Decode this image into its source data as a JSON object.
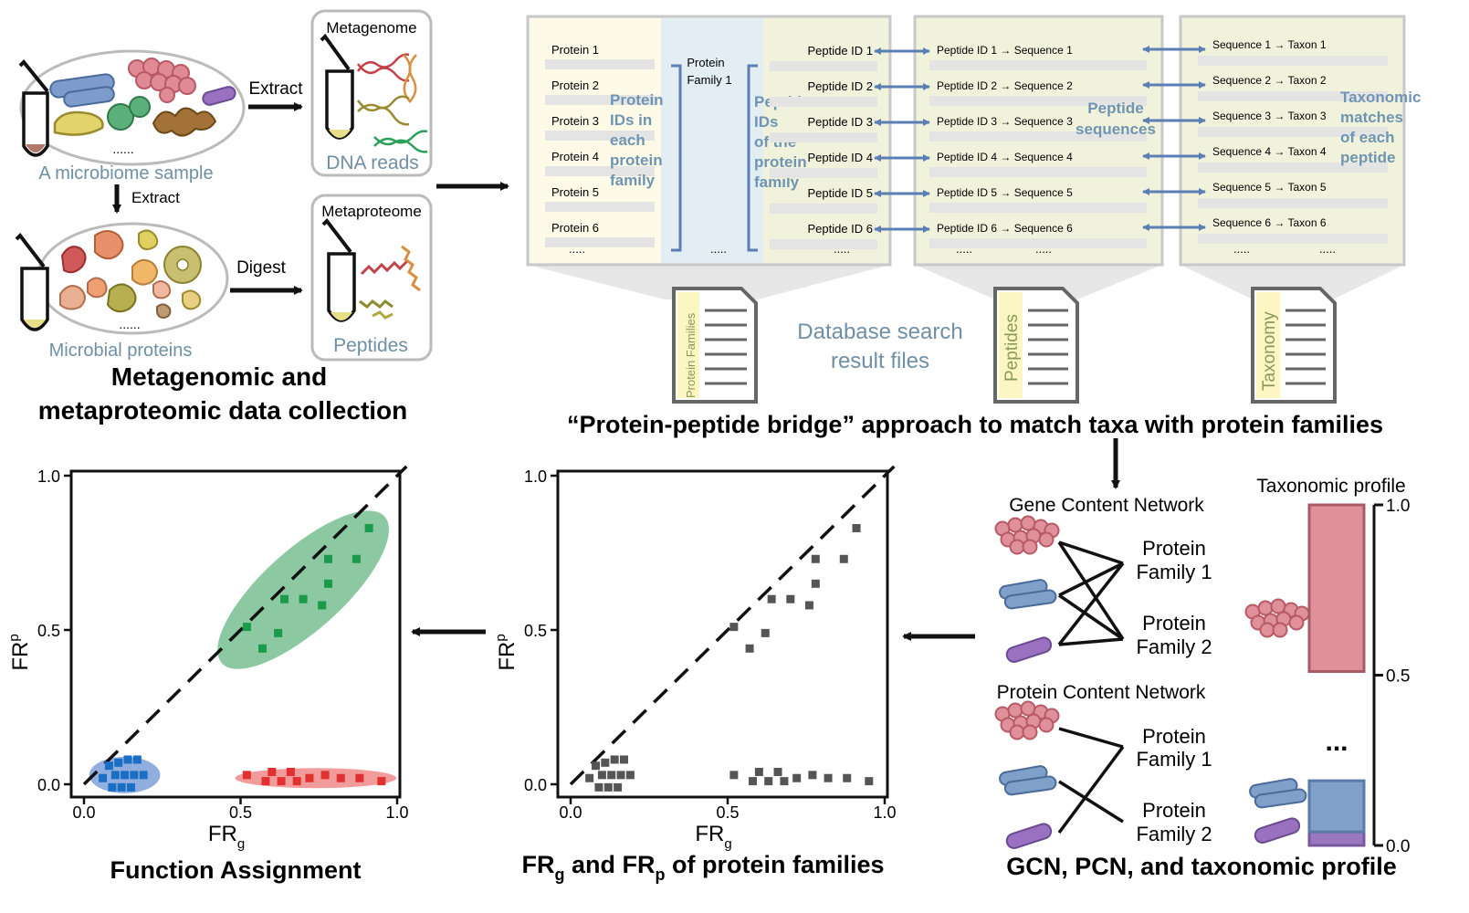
{
  "panels": {
    "collection": {
      "sample_label": "A microbiome sample",
      "ellipsis": "......",
      "extract_right": "Extract",
      "extract_down": "Extract",
      "digest": "Digest",
      "metagenome_title": "Metagenome",
      "dna_reads": "DNA reads",
      "metaproteome_title": "Metaproteome",
      "peptides": "Peptides",
      "microbial_proteins": "Microbial proteins",
      "caption_line1": "Metagenomic and",
      "caption_line2": "metaproteomic data collection"
    },
    "bridge": {
      "proteins": [
        "Protein 1",
        "Protein 2",
        "Protein 3",
        "Protein 4",
        "Protein 5",
        "Protein 6"
      ],
      "dots": ".....",
      "protein_family_line1": "Protein",
      "protein_family_line2": "Family 1",
      "protein_ids_label": [
        "Protein",
        "IDs in",
        "each",
        "protein",
        "family"
      ],
      "peptide_ids_label": [
        "Peptide",
        "IDs",
        "of the",
        "protein",
        "family"
      ],
      "peptide_ids": [
        "Peptide ID 1",
        "Peptide ID 2",
        "Peptide ID 3",
        "Peptide ID 4",
        "Peptide ID 5",
        "Peptide ID 6"
      ],
      "peptide_sequences": [
        "Peptide ID 1 → Sequence 1",
        "Peptide ID 2 → Sequence 2",
        "Peptide ID 3 → Sequence 3",
        "Peptide ID 4 → Sequence 4",
        "Peptide ID 5 → Sequence 5",
        "Peptide ID 6 → Sequence 6"
      ],
      "peptide_sequences_label": [
        "Peptide",
        "sequences"
      ],
      "taxa": [
        "Sequence 1 → Taxon 1",
        "Sequence 2 → Taxon 2",
        "Sequence 3 → Taxon 3",
        "Sequence 4 → Taxon 4",
        "Sequence 5 → Taxon 5",
        "Sequence 6 → Taxon 6"
      ],
      "taxonomic_label": [
        "Taxonomic",
        "matches",
        "of each",
        "peptide"
      ],
      "file_protein_families": "Protein Families",
      "file_peptides": "Peptides",
      "file_taxonomy": "Taxonomy",
      "db_search_line1": "Database search",
      "db_search_line2": "result files",
      "caption": "“Protein-peptide bridge” approach to match taxa with protein families"
    },
    "networks": {
      "gcn_title": "Gene Content Network",
      "pcn_title": "Protein Content Network",
      "family1_line1": "Protein",
      "family1_line2": "Family 1",
      "family2_line1": "Protein",
      "family2_line2": "Family 2",
      "taxonomic_profile_title": "Taxonomic profile",
      "profile_ticks": [
        "1.0",
        "0.5",
        "0.0"
      ],
      "profile_ellipsis": "...",
      "profile_segments": [
        {
          "name": "red",
          "color": "#e0909a",
          "fraction": 0.5
        },
        {
          "name": "blue",
          "color": "#7fa0c8",
          "fraction": 0.15
        },
        {
          "name": "purple",
          "color": "#9a78bf",
          "fraction": 0.04
        }
      ],
      "caption": "GCN, PCN, and taxonomic profile"
    },
    "scatter": {
      "ylabel_main": "FR",
      "ylabel_sub": "p",
      "xlabel_main": "FR",
      "xlabel_sub": "g",
      "ticks": [
        "0.0",
        "0.5",
        "1.0"
      ],
      "caption_parts": [
        "FR",
        "g",
        " and FR",
        "p",
        " of protein families"
      ]
    },
    "function": {
      "caption": "Function Assignment"
    }
  },
  "chart_data": [
    {
      "type": "scatter",
      "title": "FRg and FRp of protein families",
      "xlabel": "FRg",
      "ylabel": "FRp",
      "xlim": [
        0,
        1
      ],
      "ylim": [
        0,
        1
      ],
      "diagonal": "y = x (dashed)",
      "series": [
        {
          "color": "#555555",
          "points": [
            [
              0.08,
              0.06
            ],
            [
              0.11,
              0.07
            ],
            [
              0.14,
              0.08
            ],
            [
              0.17,
              0.08
            ],
            [
              0.06,
              0.02
            ],
            [
              0.1,
              0.03
            ],
            [
              0.13,
              0.03
            ],
            [
              0.16,
              0.03
            ],
            [
              0.19,
              0.03
            ],
            [
              0.09,
              -0.01
            ],
            [
              0.12,
              -0.01
            ],
            [
              0.15,
              -0.01
            ],
            [
              0.52,
              0.51
            ],
            [
              0.57,
              0.44
            ],
            [
              0.62,
              0.49
            ],
            [
              0.64,
              0.6
            ],
            [
              0.7,
              0.6
            ],
            [
              0.76,
              0.58
            ],
            [
              0.78,
              0.65
            ],
            [
              0.78,
              0.73
            ],
            [
              0.87,
              0.73
            ],
            [
              0.91,
              0.83
            ],
            [
              0.52,
              0.03
            ],
            [
              0.58,
              0.01
            ],
            [
              0.6,
              0.04
            ],
            [
              0.63,
              0.01
            ],
            [
              0.66,
              0.04
            ],
            [
              0.68,
              0.01
            ],
            [
              0.72,
              0.02
            ],
            [
              0.77,
              0.03
            ],
            [
              0.82,
              0.02
            ],
            [
              0.88,
              0.02
            ],
            [
              0.95,
              0.01
            ]
          ]
        }
      ]
    },
    {
      "type": "scatter",
      "title": "Function Assignment",
      "xlabel": "FRg",
      "ylabel": "FRp",
      "xlim": [
        0,
        1
      ],
      "ylim": [
        0,
        1
      ],
      "diagonal": "y = x (dashed)",
      "series": [
        {
          "color": "#1a6fc4",
          "points": [
            [
              0.08,
              0.06
            ],
            [
              0.11,
              0.07
            ],
            [
              0.14,
              0.08
            ],
            [
              0.17,
              0.08
            ],
            [
              0.06,
              0.02
            ],
            [
              0.1,
              0.03
            ],
            [
              0.13,
              0.03
            ],
            [
              0.16,
              0.03
            ],
            [
              0.19,
              0.03
            ],
            [
              0.09,
              -0.01
            ],
            [
              0.12,
              -0.01
            ],
            [
              0.15,
              -0.01
            ]
          ]
        },
        {
          "color": "#1a9a4a",
          "points": [
            [
              0.52,
              0.51
            ],
            [
              0.57,
              0.44
            ],
            [
              0.62,
              0.49
            ],
            [
              0.64,
              0.6
            ],
            [
              0.7,
              0.6
            ],
            [
              0.76,
              0.58
            ],
            [
              0.78,
              0.65
            ],
            [
              0.78,
              0.73
            ],
            [
              0.87,
              0.73
            ],
            [
              0.91,
              0.83
            ]
          ]
        },
        {
          "color": "#e03030",
          "points": [
            [
              0.52,
              0.03
            ],
            [
              0.58,
              0.01
            ],
            [
              0.6,
              0.04
            ],
            [
              0.63,
              0.01
            ],
            [
              0.66,
              0.04
            ],
            [
              0.68,
              0.01
            ],
            [
              0.72,
              0.02
            ],
            [
              0.77,
              0.03
            ],
            [
              0.82,
              0.02
            ],
            [
              0.88,
              0.02
            ],
            [
              0.95,
              0.01
            ]
          ]
        }
      ]
    }
  ]
}
